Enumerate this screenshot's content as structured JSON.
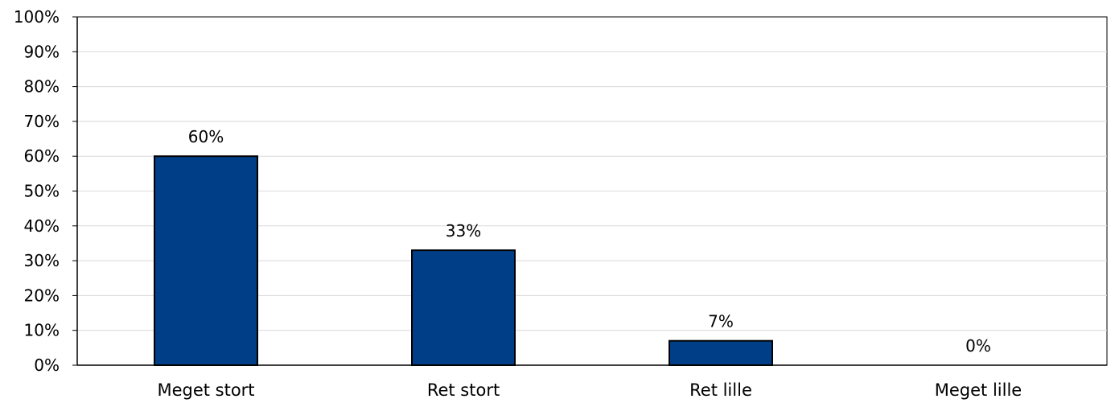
{
  "chart_data": {
    "type": "bar",
    "categories": [
      "Meget stort",
      "Ret stort",
      "Ret lille",
      "Meget lille"
    ],
    "values": [
      60,
      33,
      7,
      0
    ],
    "data_labels": [
      "60%",
      "33%",
      "7%",
      "0%"
    ],
    "title": "",
    "xlabel": "",
    "ylabel": "",
    "ylim": [
      0,
      100
    ],
    "y_ticks": [
      0,
      10,
      20,
      30,
      40,
      50,
      60,
      70,
      80,
      90,
      100
    ],
    "y_tick_labels": [
      "0%",
      "10%",
      "20%",
      "30%",
      "40%",
      "50%",
      "60%",
      "70%",
      "80%",
      "90%",
      "100%"
    ],
    "grid": true,
    "legend": "none",
    "colors": {
      "bar_fill": "#003F87",
      "bar_stroke": "#000000",
      "grid": "#D9D9D9",
      "axis": "#000000"
    }
  }
}
